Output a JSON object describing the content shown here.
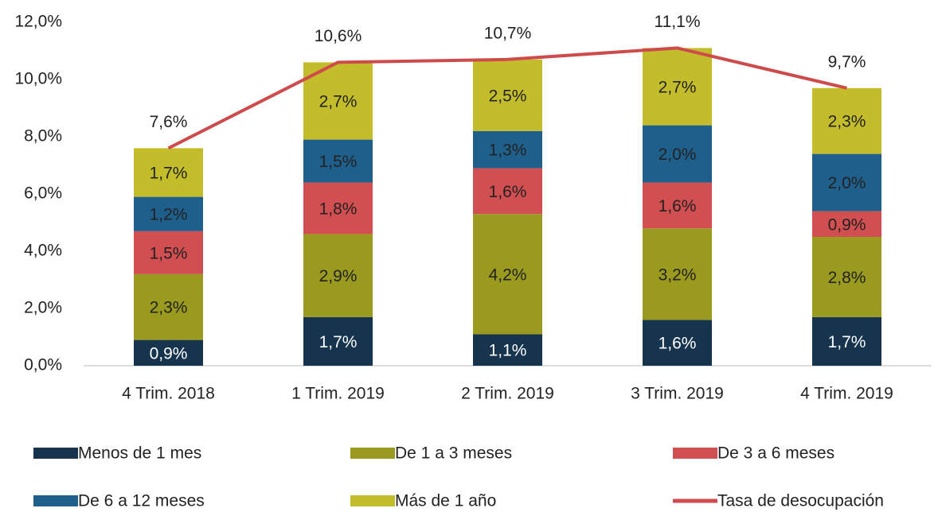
{
  "chart_data": {
    "type": "bar",
    "stacked": true,
    "categories": [
      "4 Trim. 2018",
      "1 Trim. 2019",
      "2 Trim. 2019",
      "3 Trim. 2019",
      "4 Trim. 2019"
    ],
    "series": [
      {
        "name": "Menos de 1 mes",
        "color": "#17344f",
        "values": [
          0.9,
          1.7,
          1.1,
          1.6,
          1.7
        ],
        "value_labels": [
          "0,9%",
          "1,7%",
          "1,1%",
          "1,6%",
          "1,7%"
        ]
      },
      {
        "name": "De 1 a 3 meses",
        "color": "#9a9a1f",
        "values": [
          2.3,
          2.9,
          4.2,
          3.2,
          2.8
        ],
        "value_labels": [
          "2,3%",
          "2,9%",
          "4,2%",
          "3,2%",
          "2,8%"
        ]
      },
      {
        "name": "De 3 a 6 meses",
        "color": "#d24f51",
        "values": [
          1.5,
          1.8,
          1.6,
          1.6,
          0.9
        ],
        "value_labels": [
          "1,5%",
          "1,8%",
          "1,6%",
          "1,6%",
          "0,9%"
        ]
      },
      {
        "name": "De 6 a 12 meses",
        "color": "#1f5f8b",
        "values": [
          1.2,
          1.5,
          1.3,
          2.0,
          2.0
        ],
        "value_labels": [
          "1,2%",
          "1,5%",
          "1,3%",
          "2,0%",
          "2,0%"
        ]
      },
      {
        "name": "Más de 1 año",
        "color": "#c4bd2b",
        "values": [
          1.7,
          2.7,
          2.5,
          2.7,
          2.3
        ],
        "value_labels": [
          "1,7%",
          "2,7%",
          "2,5%",
          "2,7%",
          "2,3%"
        ]
      },
      {
        "name": "Tasa de desocupación",
        "type": "line",
        "color": "#cf4a4b",
        "values": [
          7.6,
          10.6,
          10.7,
          11.1,
          9.7
        ],
        "value_labels": [
          "7,6%",
          "10,6%",
          "10,7%",
          "11,1%",
          "9,7%"
        ]
      }
    ],
    "ylim": [
      0,
      12
    ],
    "yticks": [
      {
        "value": 0,
        "label": "0,0%"
      },
      {
        "value": 2,
        "label": "2,0%"
      },
      {
        "value": 4,
        "label": "4,0%"
      },
      {
        "value": 6,
        "label": "6,0%"
      },
      {
        "value": 8,
        "label": "8,0%"
      },
      {
        "value": 10,
        "label": "10,0%"
      },
      {
        "value": 12,
        "label": "12,0%"
      }
    ],
    "grid": false,
    "legend": "bottom"
  }
}
